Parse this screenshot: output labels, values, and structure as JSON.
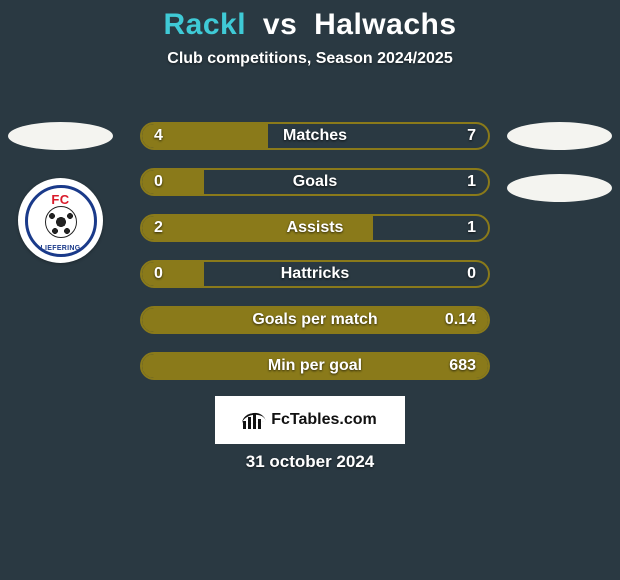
{
  "title": {
    "player1": "Rackl",
    "vs": "vs",
    "player2": "Halwachs",
    "fontsize": 30,
    "p1_color": "#3fcad6",
    "vs_color": "#ffffff",
    "p2_color": "#ffffff"
  },
  "subtitle": {
    "text": "Club competitions, Season 2024/2025",
    "fontsize": 16
  },
  "background_color": "#2a3942",
  "club_badge": {
    "top_text": "FC",
    "bottom_text": "LIEFERING",
    "border_color": "#1a3a8a"
  },
  "bars": {
    "border_color": "#8a7a1a",
    "fill_color": "#8a7a1a",
    "track_color": "transparent",
    "label_fontsize": 16,
    "value_fontsize": 16,
    "rows": [
      {
        "label": "Matches",
        "left": "4",
        "right": "7",
        "left_pct": 36.4,
        "right_pct": 0
      },
      {
        "label": "Goals",
        "left": "0",
        "right": "1",
        "left_pct": 18,
        "right_pct": 0
      },
      {
        "label": "Assists",
        "left": "2",
        "right": "1",
        "left_pct": 66.7,
        "right_pct": 0
      },
      {
        "label": "Hattricks",
        "left": "0",
        "right": "0",
        "left_pct": 18,
        "right_pct": 0
      },
      {
        "label": "Goals per match",
        "left": "",
        "right": "0.14",
        "left_pct": 100,
        "right_pct": 0
      },
      {
        "label": "Min per goal",
        "left": "",
        "right": "683",
        "left_pct": 100,
        "right_pct": 0
      }
    ]
  },
  "brand": {
    "text": "FcTables.com",
    "fontsize": 16
  },
  "date": {
    "text": "31 october 2024",
    "fontsize": 17
  }
}
